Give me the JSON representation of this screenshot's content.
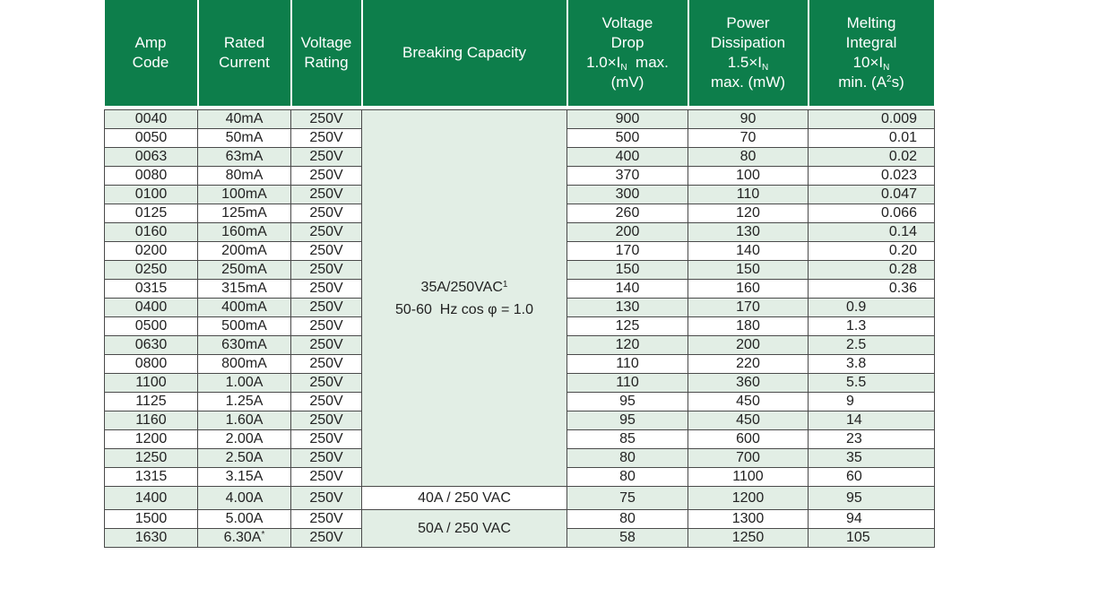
{
  "headers": {
    "amp_code": [
      "Amp",
      "Code"
    ],
    "rated_current": [
      "Rated",
      "Current"
    ],
    "voltage_rating": [
      "Voltage",
      "Rating"
    ],
    "breaking_capacity": "Breaking Capacity",
    "voltage_drop": {
      "l1": "Voltage",
      "l2": "Drop",
      "l3_a": "1.0×I",
      "l3_sub": "N",
      "l3_b": "  max.",
      "l4": "(mV)"
    },
    "power_dissipation": {
      "l1": "Power",
      "l2": "Dissipation",
      "l3_a": "1.5×I",
      "l3_sub": "N",
      "l4": "max. (mW)"
    },
    "melting_integral": {
      "l1": "Melting",
      "l2": "Integral",
      "l3_a": "10×I",
      "l3_sub": "N",
      "l4_a": "min. (A",
      "l4_sup": "2",
      "l4_b": "s)"
    }
  },
  "breaking_capacity_groups": {
    "main": {
      "line1": "35A/250VAC",
      "footnote": "1",
      "line2": "50-60  Hz cos φ = 1.0"
    },
    "g40": "40A / 250 VAC",
    "g50": "50A / 250 VAC"
  },
  "rows": [
    {
      "amp_code": "0040",
      "rated_current": "40mA",
      "voltage_rating": "250V",
      "voltage_drop": "900",
      "power_dissipation": "90",
      "melting_integral": "0.009"
    },
    {
      "amp_code": "0050",
      "rated_current": "50mA",
      "voltage_rating": "250V",
      "voltage_drop": "500",
      "power_dissipation": "70",
      "melting_integral": "0.01"
    },
    {
      "amp_code": "0063",
      "rated_current": "63mA",
      "voltage_rating": "250V",
      "voltage_drop": "400",
      "power_dissipation": "80",
      "melting_integral": "0.02"
    },
    {
      "amp_code": "0080",
      "rated_current": "80mA",
      "voltage_rating": "250V",
      "voltage_drop": "370",
      "power_dissipation": "100",
      "melting_integral": "0.023"
    },
    {
      "amp_code": "0100",
      "rated_current": "100mA",
      "voltage_rating": "250V",
      "voltage_drop": "300",
      "power_dissipation": "110",
      "melting_integral": "0.047"
    },
    {
      "amp_code": "0125",
      "rated_current": "125mA",
      "voltage_rating": "250V",
      "voltage_drop": "260",
      "power_dissipation": "120",
      "melting_integral": "0.066"
    },
    {
      "amp_code": "0160",
      "rated_current": "160mA",
      "voltage_rating": "250V",
      "voltage_drop": "200",
      "power_dissipation": "130",
      "melting_integral": "0.14"
    },
    {
      "amp_code": "0200",
      "rated_current": "200mA",
      "voltage_rating": "250V",
      "voltage_drop": "170",
      "power_dissipation": "140",
      "melting_integral": "0.20"
    },
    {
      "amp_code": "0250",
      "rated_current": "250mA",
      "voltage_rating": "250V",
      "voltage_drop": "150",
      "power_dissipation": "150",
      "melting_integral": "0.28"
    },
    {
      "amp_code": "0315",
      "rated_current": "315mA",
      "voltage_rating": "250V",
      "voltage_drop": "140",
      "power_dissipation": "160",
      "melting_integral": "0.36"
    },
    {
      "amp_code": "0400",
      "rated_current": "400mA",
      "voltage_rating": "250V",
      "voltage_drop": "130",
      "power_dissipation": "170",
      "melting_integral": "0.9"
    },
    {
      "amp_code": "0500",
      "rated_current": "500mA",
      "voltage_rating": "250V",
      "voltage_drop": "125",
      "power_dissipation": "180",
      "melting_integral": "1.3"
    },
    {
      "amp_code": "0630",
      "rated_current": "630mA",
      "voltage_rating": "250V",
      "voltage_drop": "120",
      "power_dissipation": "200",
      "melting_integral": "2.5"
    },
    {
      "amp_code": "0800",
      "rated_current": "800mA",
      "voltage_rating": "250V",
      "voltage_drop": "110",
      "power_dissipation": "220",
      "melting_integral": "3.8"
    },
    {
      "amp_code": "1100",
      "rated_current": "1.00A",
      "voltage_rating": "250V",
      "voltage_drop": "110",
      "power_dissipation": "360",
      "melting_integral": "5.5"
    },
    {
      "amp_code": "1125",
      "rated_current": "1.25A",
      "voltage_rating": "250V",
      "voltage_drop": "95",
      "power_dissipation": "450",
      "melting_integral": "9"
    },
    {
      "amp_code": "1160",
      "rated_current": "1.60A",
      "voltage_rating": "250V",
      "voltage_drop": "95",
      "power_dissipation": "450",
      "melting_integral": "14"
    },
    {
      "amp_code": "1200",
      "rated_current": "2.00A",
      "voltage_rating": "250V",
      "voltage_drop": "85",
      "power_dissipation": "600",
      "melting_integral": "23"
    },
    {
      "amp_code": "1250",
      "rated_current": "2.50A",
      "voltage_rating": "250V",
      "voltage_drop": "80",
      "power_dissipation": "700",
      "melting_integral": "35"
    },
    {
      "amp_code": "1315",
      "rated_current": "3.15A",
      "voltage_rating": "250V",
      "voltage_drop": "80",
      "power_dissipation": "1100",
      "melting_integral": "60"
    },
    {
      "amp_code": "1400",
      "rated_current": "4.00A",
      "voltage_rating": "250V",
      "voltage_drop": "75",
      "power_dissipation": "1200",
      "melting_integral": "95"
    },
    {
      "amp_code": "1500",
      "rated_current": "5.00A",
      "voltage_rating": "250V",
      "voltage_drop": "80",
      "power_dissipation": "1300",
      "melting_integral": "94"
    },
    {
      "amp_code": "1630",
      "rated_current": "6.30A",
      "rated_current_mark": "*",
      "voltage_rating": "250V",
      "voltage_drop": "58",
      "power_dissipation": "1250",
      "melting_integral": "105"
    }
  ],
  "colors": {
    "header_bg": "#0d7e4b",
    "row_tint": "#e2eee5",
    "header_text": "#ffffff"
  }
}
